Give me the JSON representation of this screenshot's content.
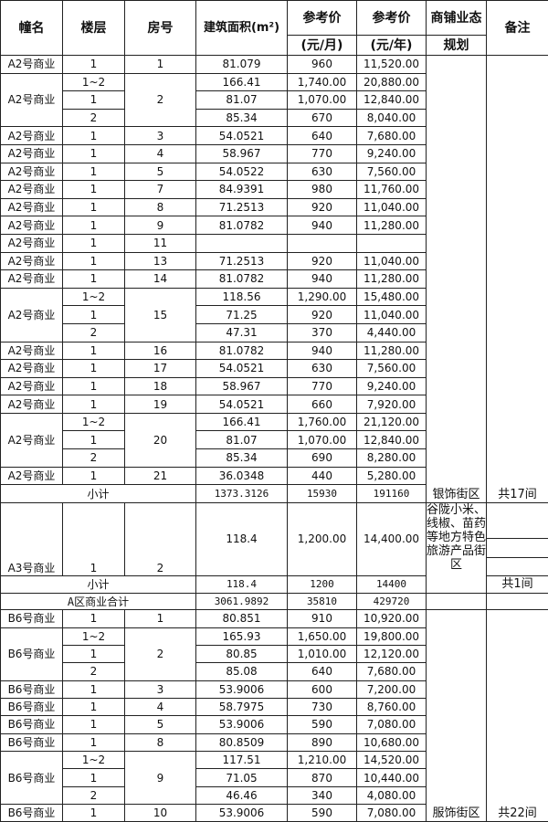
{
  "header": {
    "building": "幢名",
    "floor": "楼层",
    "room": "房号",
    "area": "建筑面积(m²)",
    "monthly": "参考价",
    "monthly_unit": "(元/月)",
    "yearly": "参考价",
    "yearly_unit": "(元/年)",
    "format": "商铺业态",
    "format_sub": "规划",
    "remark": "备注"
  },
  "sections": [
    {
      "groups": [
        {
          "building": "A2号商业",
          "room": "1",
          "rows": [
            {
              "floor": "1",
              "area": "81.079",
              "monthly": "960",
              "yearly": "11,520.00"
            }
          ]
        },
        {
          "building": "A2号商业",
          "room": "2",
          "rows": [
            {
              "floor": "1~2",
              "area": "166.41",
              "monthly": "1,740.00",
              "yearly": "20,880.00"
            },
            {
              "floor": "1",
              "area": "81.07",
              "monthly": "1,070.00",
              "yearly": "12,840.00"
            },
            {
              "floor": "2",
              "area": "85.34",
              "monthly": "670",
              "yearly": "8,040.00"
            }
          ]
        },
        {
          "building": "A2号商业",
          "room": "3",
          "rows": [
            {
              "floor": "1",
              "area": "54.0521",
              "monthly": "640",
              "yearly": "7,680.00"
            }
          ]
        },
        {
          "building": "A2号商业",
          "room": "4",
          "rows": [
            {
              "floor": "1",
              "area": "58.967",
              "monthly": "770",
              "yearly": "9,240.00"
            }
          ]
        },
        {
          "building": "A2号商业",
          "room": "5",
          "rows": [
            {
              "floor": "1",
              "area": "54.0522",
              "monthly": "630",
              "yearly": "7,560.00"
            }
          ]
        },
        {
          "building": "A2号商业",
          "room": "7",
          "rows": [
            {
              "floor": "1",
              "area": "84.9391",
              "monthly": "980",
              "yearly": "11,760.00"
            }
          ]
        },
        {
          "building": "A2号商业",
          "room": "8",
          "rows": [
            {
              "floor": "1",
              "area": "71.2513",
              "monthly": "920",
              "yearly": "11,040.00"
            }
          ]
        },
        {
          "building": "A2号商业",
          "room": "9",
          "rows": [
            {
              "floor": "1",
              "area": "81.0782",
              "monthly": "940",
              "yearly": "11,280.00"
            }
          ]
        },
        {
          "building": "A2号商业",
          "room": "11",
          "rows": [
            {
              "floor": "1",
              "area": "",
              "monthly": "",
              "yearly": ""
            }
          ]
        },
        {
          "building": "A2号商业",
          "room": "13",
          "rows": [
            {
              "floor": "1",
              "area": "71.2513",
              "monthly": "920",
              "yearly": "11,040.00"
            }
          ]
        },
        {
          "building": "A2号商业",
          "room": "14",
          "rows": [
            {
              "floor": "1",
              "area": "81.0782",
              "monthly": "940",
              "yearly": "11,280.00"
            }
          ]
        },
        {
          "building": "A2号商业",
          "room": "15",
          "rows": [
            {
              "floor": "1~2",
              "area": "118.56",
              "monthly": "1,290.00",
              "yearly": "15,480.00"
            },
            {
              "floor": "1",
              "area": "71.25",
              "monthly": "920",
              "yearly": "11,040.00"
            },
            {
              "floor": "2",
              "area": "47.31",
              "monthly": "370",
              "yearly": "4,440.00"
            }
          ]
        },
        {
          "building": "A2号商业",
          "room": "16",
          "rows": [
            {
              "floor": "1",
              "area": "81.0782",
              "monthly": "940",
              "yearly": "11,280.00"
            }
          ]
        },
        {
          "building": "A2号商业",
          "room": "17",
          "rows": [
            {
              "floor": "1",
              "area": "54.0521",
              "monthly": "630",
              "yearly": "7,560.00"
            }
          ]
        },
        {
          "building": "A2号商业",
          "room": "18",
          "rows": [
            {
              "floor": "1",
              "area": "58.967",
              "monthly": "770",
              "yearly": "9,240.00"
            }
          ]
        },
        {
          "building": "A2号商业",
          "room": "19",
          "rows": [
            {
              "floor": "1",
              "area": "54.0521",
              "monthly": "660",
              "yearly": "7,920.00"
            }
          ]
        },
        {
          "building": "A2号商业",
          "room": "20",
          "rows": [
            {
              "floor": "1~2",
              "area": "166.41",
              "monthly": "1,760.00",
              "yearly": "21,120.00"
            },
            {
              "floor": "1",
              "area": "81.07",
              "monthly": "1,070.00",
              "yearly": "12,840.00"
            },
            {
              "floor": "2",
              "area": "85.34",
              "monthly": "690",
              "yearly": "8,280.00"
            }
          ]
        },
        {
          "building": "A2号商业",
          "room": "21",
          "rows": [
            {
              "floor": "1",
              "area": "36.0348",
              "monthly": "440",
              "yearly": "5,280.00"
            }
          ]
        }
      ],
      "subtotal": {
        "label": "小计",
        "area": "1373.3126",
        "monthly": "15930",
        "yearly": "191160"
      },
      "format": "银饰街区",
      "remark": "共17间"
    },
    {
      "groups": [
        {
          "building": "A3号商业",
          "room": "2",
          "rows": [
            {
              "floor": "1",
              "area": "118.4",
              "monthly": "1,200.00",
              "yearly": "14,400.00"
            }
          ]
        }
      ],
      "subtotal": {
        "label": "小计",
        "area": "118.4",
        "monthly": "1200",
        "yearly": "14400"
      },
      "format": "谷陇小米、线椒、苗药等地方特色旅游产品街区",
      "remark": "共1间"
    },
    {
      "groups": [
        {
          "building": "B6号商业",
          "room": "1",
          "rows": [
            {
              "floor": "1",
              "area": "80.851",
              "monthly": "910",
              "yearly": "10,920.00"
            }
          ]
        },
        {
          "building": "B6号商业",
          "room": "2",
          "rows": [
            {
              "floor": "1~2",
              "area": "165.93",
              "monthly": "1,650.00",
              "yearly": "19,800.00"
            },
            {
              "floor": "1",
              "area": "80.85",
              "monthly": "1,010.00",
              "yearly": "12,120.00"
            },
            {
              "floor": "2",
              "area": "85.08",
              "monthly": "640",
              "yearly": "7,680.00"
            }
          ]
        },
        {
          "building": "B6号商业",
          "room": "3",
          "rows": [
            {
              "floor": "1",
              "area": "53.9006",
              "monthly": "600",
              "yearly": "7,200.00"
            }
          ]
        },
        {
          "building": "B6号商业",
          "room": "4",
          "rows": [
            {
              "floor": "1",
              "area": "58.7975",
              "monthly": "730",
              "yearly": "8,760.00"
            }
          ]
        },
        {
          "building": "B6号商业",
          "room": "5",
          "rows": [
            {
              "floor": "1",
              "area": "53.9006",
              "monthly": "590",
              "yearly": "7,080.00"
            }
          ]
        },
        {
          "building": "B6号商业",
          "room": "8",
          "rows": [
            {
              "floor": "1",
              "area": "80.8509",
              "monthly": "890",
              "yearly": "10,680.00"
            }
          ]
        },
        {
          "building": "B6号商业",
          "room": "9",
          "rows": [
            {
              "floor": "1~2",
              "area": "117.51",
              "monthly": "1,210.00",
              "yearly": "14,520.00"
            },
            {
              "floor": "1",
              "area": "71.05",
              "monthly": "870",
              "yearly": "10,440.00"
            },
            {
              "floor": "2",
              "area": "46.46",
              "monthly": "340",
              "yearly": "4,080.00"
            }
          ]
        },
        {
          "building": "B6号商业",
          "room": "10",
          "rows": [
            {
              "floor": "1",
              "area": "53.9006",
              "monthly": "590",
              "yearly": "7,080.00"
            }
          ]
        }
      ],
      "format": "服饰街区",
      "remark": "共22间"
    }
  ],
  "zone_total": {
    "label": "A区商业合计",
    "area": "3061.9892",
    "monthly": "35810",
    "yearly": "429720"
  }
}
